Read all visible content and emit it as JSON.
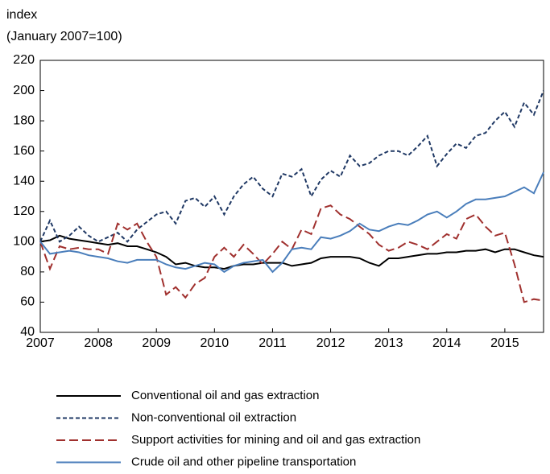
{
  "chart_data": {
    "type": "line",
    "y_label_line1": "index",
    "y_label_line2": "(January 2007=100)",
    "x": [
      2007,
      2007.167,
      2007.333,
      2007.5,
      2007.667,
      2007.833,
      2008,
      2008.167,
      2008.333,
      2008.5,
      2008.667,
      2008.833,
      2009,
      2009.167,
      2009.333,
      2009.5,
      2009.667,
      2009.833,
      2010,
      2010.167,
      2010.333,
      2010.5,
      2010.667,
      2010.833,
      2011,
      2011.167,
      2011.333,
      2011.5,
      2011.667,
      2011.833,
      2012,
      2012.167,
      2012.333,
      2012.5,
      2012.667,
      2012.833,
      2013,
      2013.167,
      2013.333,
      2013.5,
      2013.667,
      2013.833,
      2014,
      2014.167,
      2014.333,
      2014.5,
      2014.667,
      2014.833,
      2015,
      2015.167,
      2015.333,
      2015.5,
      2015.667
    ],
    "series": [
      {
        "name": "Conventional oil and gas extraction",
        "color": "#000000",
        "dash": "none",
        "values": [
          100,
          101,
          104,
          102,
          101,
          100,
          99,
          98,
          99,
          97,
          97,
          95,
          93,
          90,
          85,
          86,
          84,
          83,
          83,
          82,
          84,
          85,
          85,
          86,
          86,
          86,
          84,
          85,
          86,
          89,
          90,
          90,
          90,
          89,
          86,
          84,
          89,
          89,
          90,
          91,
          92,
          92,
          93,
          93,
          94,
          94,
          95,
          93,
          95,
          95,
          93,
          91,
          90
        ]
      },
      {
        "name": "Non-conventional oil extraction",
        "color": "#1f3864",
        "dash": "5,3",
        "values": [
          100,
          114,
          100,
          104,
          110,
          104,
          100,
          103,
          106,
          100,
          108,
          113,
          118,
          120,
          112,
          127,
          129,
          123,
          130,
          118,
          130,
          138,
          143,
          135,
          130,
          145,
          143,
          148,
          130,
          141,
          147,
          143,
          157,
          150,
          152,
          157,
          160,
          160,
          157,
          163,
          170,
          150,
          158,
          165,
          162,
          170,
          172,
          180,
          186,
          176,
          192,
          184,
          200
        ]
      },
      {
        "name": "Support activities for mining and oil and gas extraction",
        "color": "#a0302e",
        "dash": "11,5",
        "values": [
          100,
          82,
          97,
          95,
          96,
          95,
          95,
          92,
          112,
          108,
          112,
          100,
          90,
          65,
          70,
          63,
          72,
          76,
          90,
          96,
          90,
          98,
          92,
          85,
          92,
          100,
          95,
          108,
          105,
          122,
          124,
          118,
          115,
          110,
          105,
          98,
          94,
          96,
          100,
          98,
          95,
          100,
          105,
          102,
          115,
          118,
          110,
          104,
          106,
          85,
          60,
          62,
          61
        ]
      },
      {
        "name": "Crude oil and other pipeline transportation",
        "color": "#4a7ebb",
        "dash": "none",
        "values": [
          100,
          92,
          93,
          94,
          93,
          91,
          90,
          89,
          87,
          86,
          88,
          88,
          88,
          85,
          83,
          82,
          84,
          86,
          85,
          80,
          84,
          86,
          87,
          88,
          80,
          86,
          95,
          96,
          95,
          103,
          102,
          104,
          107,
          112,
          108,
          107,
          110,
          112,
          111,
          114,
          118,
          120,
          116,
          120,
          125,
          128,
          128,
          129,
          130,
          133,
          136,
          132,
          146
        ]
      }
    ],
    "xlim": [
      2007,
      2015.667
    ],
    "xticks": [
      2007,
      2008,
      2009,
      2010,
      2011,
      2012,
      2013,
      2014,
      2015
    ],
    "ylim": [
      40,
      220
    ],
    "yticks": [
      40,
      60,
      80,
      100,
      120,
      140,
      160,
      180,
      200,
      220
    ],
    "grid": false,
    "legend": "bottom"
  }
}
